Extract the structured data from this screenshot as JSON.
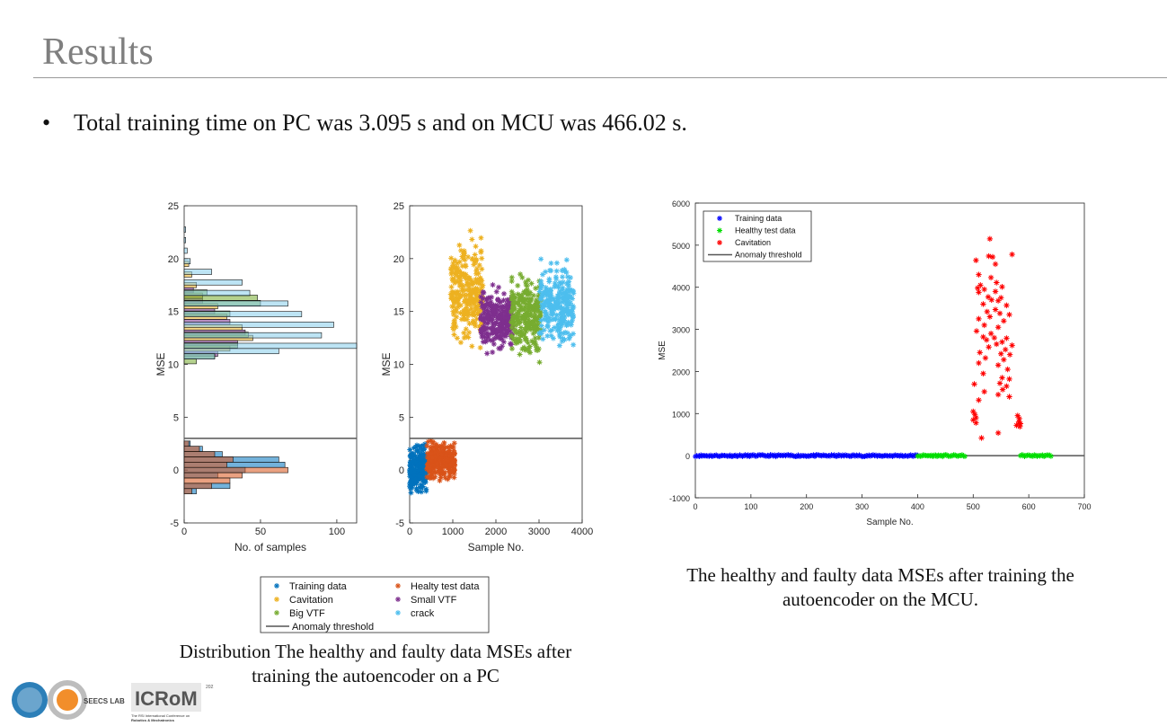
{
  "slide": {
    "title": "Results",
    "bullet": "Total training time on PC was 3.095 s and on MCU was 466.02 s.",
    "left_caption_1": "Distribution The healthy and faulty data MSEs after",
    "left_caption_2": "training the autoencoder on a PC",
    "right_caption_1": "The healthy and faulty data MSEs after training the",
    "right_caption_2": "autoencoder on the MCU."
  },
  "logos": {
    "lab": "SEECS LAB",
    "conf_line1": "The RSI International Conference on",
    "conf_line2": "Robotics & Mechatronics",
    "year": "2021"
  },
  "chart_data": [
    {
      "type": "bar",
      "orientation": "horizontal histogram",
      "xlabel": "No. of samples",
      "ylabel": "MSE",
      "xlim": [
        0,
        113
      ],
      "ylim": [
        -5,
        25
      ],
      "xticks": [
        "0",
        "50",
        "100"
      ],
      "yticks": [
        "-5",
        "0",
        "5",
        "10",
        "15",
        "20",
        "25"
      ],
      "threshold": 3,
      "series": [
        {
          "name": "Training data",
          "color": "#0072bd",
          "bins": [
            [
              0.5,
              66
            ],
            [
              1.0,
              62
            ],
            [
              0.0,
              40
            ],
            [
              -1.5,
              30
            ],
            [
              1.5,
              25
            ],
            [
              -0.5,
              22
            ],
            [
              2.0,
              12
            ],
            [
              -2.0,
              8
            ],
            [
              2.5,
              4
            ]
          ]
        },
        {
          "name": "Healty test data",
          "color": "#d95319",
          "bins": [
            [
              0.0,
              68
            ],
            [
              -0.5,
              38
            ],
            [
              1.0,
              32
            ],
            [
              -1.0,
              30
            ],
            [
              0.5,
              28
            ],
            [
              1.5,
              20
            ],
            [
              -1.5,
              18
            ],
            [
              2.0,
              10
            ],
            [
              -2.0,
              5
            ],
            [
              2.5,
              3
            ]
          ]
        },
        {
          "name": "Cavitation",
          "color": "#edb120",
          "bins": [
            [
              12.5,
              45
            ],
            [
              13.5,
              38
            ],
            [
              11.5,
              30
            ],
            [
              14.5,
              28
            ],
            [
              15.5,
              22
            ],
            [
              16.5,
              12
            ],
            [
              17.5,
              8
            ],
            [
              18.5,
              5
            ],
            [
              19.5,
              3
            ]
          ]
        },
        {
          "name": "Small VTF",
          "color": "#7e2f8e",
          "bins": [
            [
              13.0,
              40
            ],
            [
              12.0,
              35
            ],
            [
              14.0,
              30
            ],
            [
              11.0,
              22
            ],
            [
              15.0,
              20
            ],
            [
              16.0,
              12
            ],
            [
              17.0,
              6
            ]
          ]
        },
        {
          "name": "Big VTF",
          "color": "#77ac30",
          "bins": [
            [
              15.8,
              50
            ],
            [
              16.3,
              48
            ],
            [
              12.8,
              42
            ],
            [
              11.8,
              35
            ],
            [
              14.8,
              30
            ],
            [
              10.8,
              20
            ],
            [
              16.8,
              15
            ],
            [
              10.3,
              8
            ]
          ]
        },
        {
          "name": "crack",
          "color": "#87ceeb",
          "bins": [
            [
              11.75,
              113
            ],
            [
              12.75,
              90
            ],
            [
              13.75,
              98
            ],
            [
              14.75,
              77
            ],
            [
              15.75,
              68
            ],
            [
              16.75,
              43
            ],
            [
              17.75,
              38
            ],
            [
              18.75,
              18
            ],
            [
              11.25,
              62
            ],
            [
              10.75,
              20
            ],
            [
              19.75,
              4
            ],
            [
              20.75,
              2
            ],
            [
              21.75,
              1
            ],
            [
              22.75,
              1
            ]
          ]
        }
      ]
    },
    {
      "type": "scatter",
      "xlabel": "Sample No.",
      "ylabel": "MSE",
      "xlim": [
        0,
        4000
      ],
      "ylim": [
        -5,
        25
      ],
      "xticks": [
        "0",
        "1000",
        "2000",
        "3000",
        "4000"
      ],
      "yticks": [
        "-5",
        "0",
        "5",
        "10",
        "15",
        "20",
        "25"
      ],
      "threshold": 3,
      "series": [
        {
          "name": "Training data",
          "color": "#0072bd",
          "x_range": [
            0,
            400
          ],
          "y_range": [
            -2.5,
            2.8
          ]
        },
        {
          "name": "Healty test data",
          "color": "#d95319",
          "x_range": [
            400,
            1050
          ],
          "y_range": [
            -1.5,
            3.1
          ]
        },
        {
          "name": "Cavitation",
          "color": "#edb120",
          "x_range": [
            950,
            1700
          ],
          "y_range": [
            10.5,
            23.2
          ]
        },
        {
          "name": "Small VTF",
          "color": "#7e2f8e",
          "x_range": [
            1650,
            2400
          ],
          "y_range": [
            10.5,
            18.0
          ]
        },
        {
          "name": "Big VTF",
          "color": "#77ac30",
          "x_range": [
            2350,
            3050
          ],
          "y_range": [
            9.8,
            19.2
          ]
        },
        {
          "name": "crack",
          "color": "#4dbeee",
          "x_range": [
            3000,
            3800
          ],
          "y_range": [
            10.5,
            20.9
          ]
        }
      ],
      "legend": {
        "placement": "below",
        "entries": [
          "Training data",
          "Healty test data",
          "Cavitation",
          "Small VTF",
          "Big VTF",
          "crack",
          "Anomaly threshold"
        ]
      }
    },
    {
      "type": "scatter",
      "xlabel": "Sample No.",
      "ylabel": "MSE",
      "xlim": [
        0,
        700
      ],
      "ylim": [
        -1000,
        6000
      ],
      "xticks": [
        "0",
        "100",
        "200",
        "300",
        "400",
        "500",
        "600",
        "700"
      ],
      "yticks": [
        "-1000",
        "0",
        "1000",
        "2000",
        "3000",
        "4000",
        "5000",
        "6000"
      ],
      "threshold": 0,
      "series": [
        {
          "name": "Training data",
          "color": "#0000ff",
          "x_range": [
            0,
            400
          ],
          "y": 0
        },
        {
          "name": "Healthy test data",
          "color": "#00dd00",
          "x_ranges": [
            [
              400,
              485
            ],
            [
              585,
              640
            ]
          ],
          "y": 0
        },
        {
          "name": "Cavitation",
          "color": "#ff0000",
          "points": [
            [
              530,
              5150
            ],
            [
              570,
              4780
            ],
            [
              528,
              4740
            ],
            [
              535,
              4720
            ],
            [
              505,
              4640
            ],
            [
              540,
              4550
            ],
            [
              510,
              4300
            ],
            [
              532,
              4230
            ],
            [
              542,
              4110
            ],
            [
              513,
              4050
            ],
            [
              508,
              3980
            ],
            [
              552,
              4010
            ],
            [
              520,
              3950
            ],
            [
              540,
              3900
            ],
            [
              510,
              3880
            ],
            [
              527,
              3770
            ],
            [
              550,
              3750
            ],
            [
              533,
              3700
            ],
            [
              518,
              3600
            ],
            [
              545,
              3680
            ],
            [
              560,
              3570
            ],
            [
              540,
              3470
            ],
            [
              525,
              3420
            ],
            [
              548,
              3380
            ],
            [
              565,
              3350
            ],
            [
              530,
              3300
            ],
            [
              510,
              3250
            ],
            [
              555,
              3200
            ],
            [
              520,
              3100
            ],
            [
              545,
              3050
            ],
            [
              506,
              2960
            ],
            [
              532,
              2900
            ],
            [
              518,
              2820
            ],
            [
              538,
              2800
            ],
            [
              560,
              2790
            ],
            [
              524,
              2750
            ],
            [
              552,
              2700
            ],
            [
              542,
              2650
            ],
            [
              570,
              2620
            ],
            [
              528,
              2580
            ],
            [
              558,
              2520
            ],
            [
              512,
              2450
            ],
            [
              550,
              2420
            ],
            [
              566,
              2400
            ],
            [
              522,
              2320
            ],
            [
              555,
              2280
            ],
            [
              510,
              2200
            ],
            [
              545,
              2150
            ],
            [
              562,
              2050
            ],
            [
              518,
              1950
            ],
            [
              552,
              1850
            ],
            [
              565,
              1820
            ],
            [
              548,
              1720
            ],
            [
              502,
              1700
            ],
            [
              560,
              1650
            ],
            [
              553,
              1570
            ],
            [
              520,
              1520
            ],
            [
              545,
              1450
            ],
            [
              565,
              1400
            ],
            [
              510,
              1320
            ],
            [
              500,
              1050
            ],
            [
              503,
              980
            ],
            [
              505,
              900
            ],
            [
              500,
              850
            ],
            [
              505,
              780
            ],
            [
              580,
              950
            ],
            [
              583,
              880
            ],
            [
              582,
              800
            ],
            [
              585,
              760
            ],
            [
              578,
              720
            ],
            [
              584,
              690
            ],
            [
              545,
              540
            ],
            [
              515,
              420
            ]
          ]
        }
      ],
      "legend": {
        "placement": "top-left",
        "entries": [
          "Training data",
          "Healthy test data",
          "Cavitation",
          "Anomaly threshold"
        ]
      }
    }
  ]
}
